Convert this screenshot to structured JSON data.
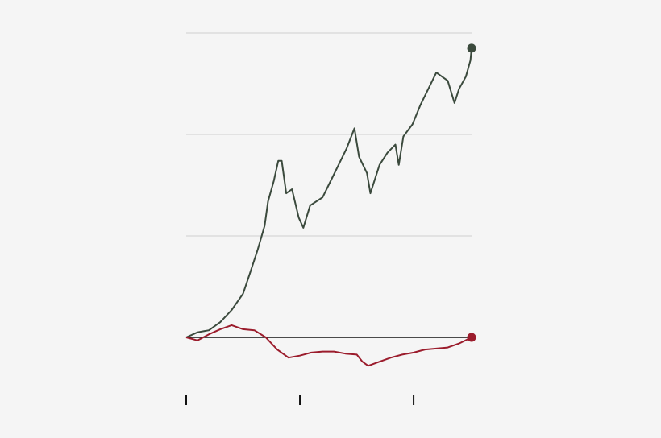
{
  "chart_data": {
    "type": "line",
    "xlim": [
      0,
      2.51
    ],
    "xticks": [
      0,
      1,
      2
    ],
    "ylim": [
      -0.5,
      3
    ],
    "yticks": [
      0,
      1,
      2,
      3
    ],
    "grid": true,
    "series": [
      {
        "color": "#3b4a3d",
        "x": [
          0,
          0.1,
          0.2,
          0.3,
          0.4,
          0.5,
          0.56,
          0.63,
          0.69,
          0.72,
          0.77,
          0.81,
          0.84,
          0.88,
          0.93,
          0.99,
          1.03,
          1.09,
          1.2,
          1.27,
          1.34,
          1.41,
          1.48,
          1.52,
          1.59,
          1.62,
          1.7,
          1.77,
          1.84,
          1.87,
          1.91,
          1.99,
          2.06,
          2.13,
          2.2,
          2.25,
          2.3,
          2.36,
          2.4,
          2.46,
          2.5,
          2.51
        ],
        "values": [
          0,
          0.05,
          0.07,
          0.15,
          0.27,
          0.43,
          0.63,
          0.87,
          1.1,
          1.34,
          1.54,
          1.74,
          1.74,
          1.42,
          1.46,
          1.18,
          1.08,
          1.3,
          1.38,
          1.54,
          1.7,
          1.86,
          2.06,
          1.78,
          1.62,
          1.42,
          1.7,
          1.82,
          1.9,
          1.7,
          1.98,
          2.1,
          2.29,
          2.45,
          2.61,
          2.57,
          2.53,
          2.31,
          2.45,
          2.57,
          2.73,
          2.85
        ]
      },
      {
        "color": "#9b1c2c",
        "x": [
          0,
          0.1,
          0.2,
          0.3,
          0.4,
          0.5,
          0.6,
          0.7,
          0.8,
          0.9,
          1.0,
          1.1,
          1.2,
          1.3,
          1.4,
          1.5,
          1.55,
          1.6,
          1.7,
          1.8,
          1.9,
          2.0,
          2.1,
          2.2,
          2.3,
          2.4,
          2.51
        ],
        "values": [
          0,
          -0.03,
          0.03,
          0.08,
          0.12,
          0.08,
          0.07,
          0,
          -0.12,
          -0.2,
          -0.18,
          -0.15,
          -0.14,
          -0.14,
          -0.16,
          -0.17,
          -0.24,
          -0.28,
          -0.24,
          -0.2,
          -0.17,
          -0.15,
          -0.12,
          -0.11,
          -0.1,
          -0.06,
          0
        ]
      }
    ]
  }
}
